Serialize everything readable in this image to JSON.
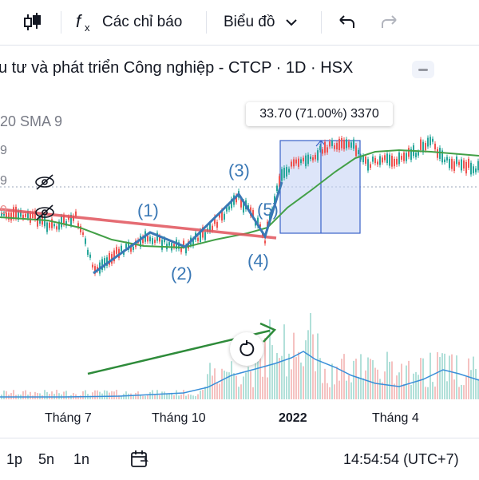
{
  "toolbar": {
    "indicators_label": "Các chỉ báo",
    "chart_type_label": "Biểu đồ"
  },
  "chart": {
    "title": "u tư và phát triển Công nghiệp - CTCP · 1D · HSX",
    "sma_label": "20 SMA 9",
    "side_values": [
      "9",
      "9",
      "9"
    ],
    "tooltip": "33.70 (71.00%) 3370",
    "wave_labels": [
      "(1)",
      "(2)",
      "(3)",
      "(4)",
      "(5)"
    ],
    "x_axis": [
      "Tháng 7",
      "Tháng 10",
      "2022",
      "Tháng 4"
    ],
    "colors": {
      "candle_up": "#26a69a",
      "candle_down": "#ef5350",
      "sma": "#43a047",
      "wave": "#3a78b5",
      "trendline": "#e0525b",
      "range_box": "#c7d3f5",
      "volume_line": "#3a8fd9"
    }
  },
  "bottombar": {
    "timeframes": [
      "1p",
      "5n",
      "1n"
    ],
    "time": "14:54:54 (UTC+7)"
  }
}
